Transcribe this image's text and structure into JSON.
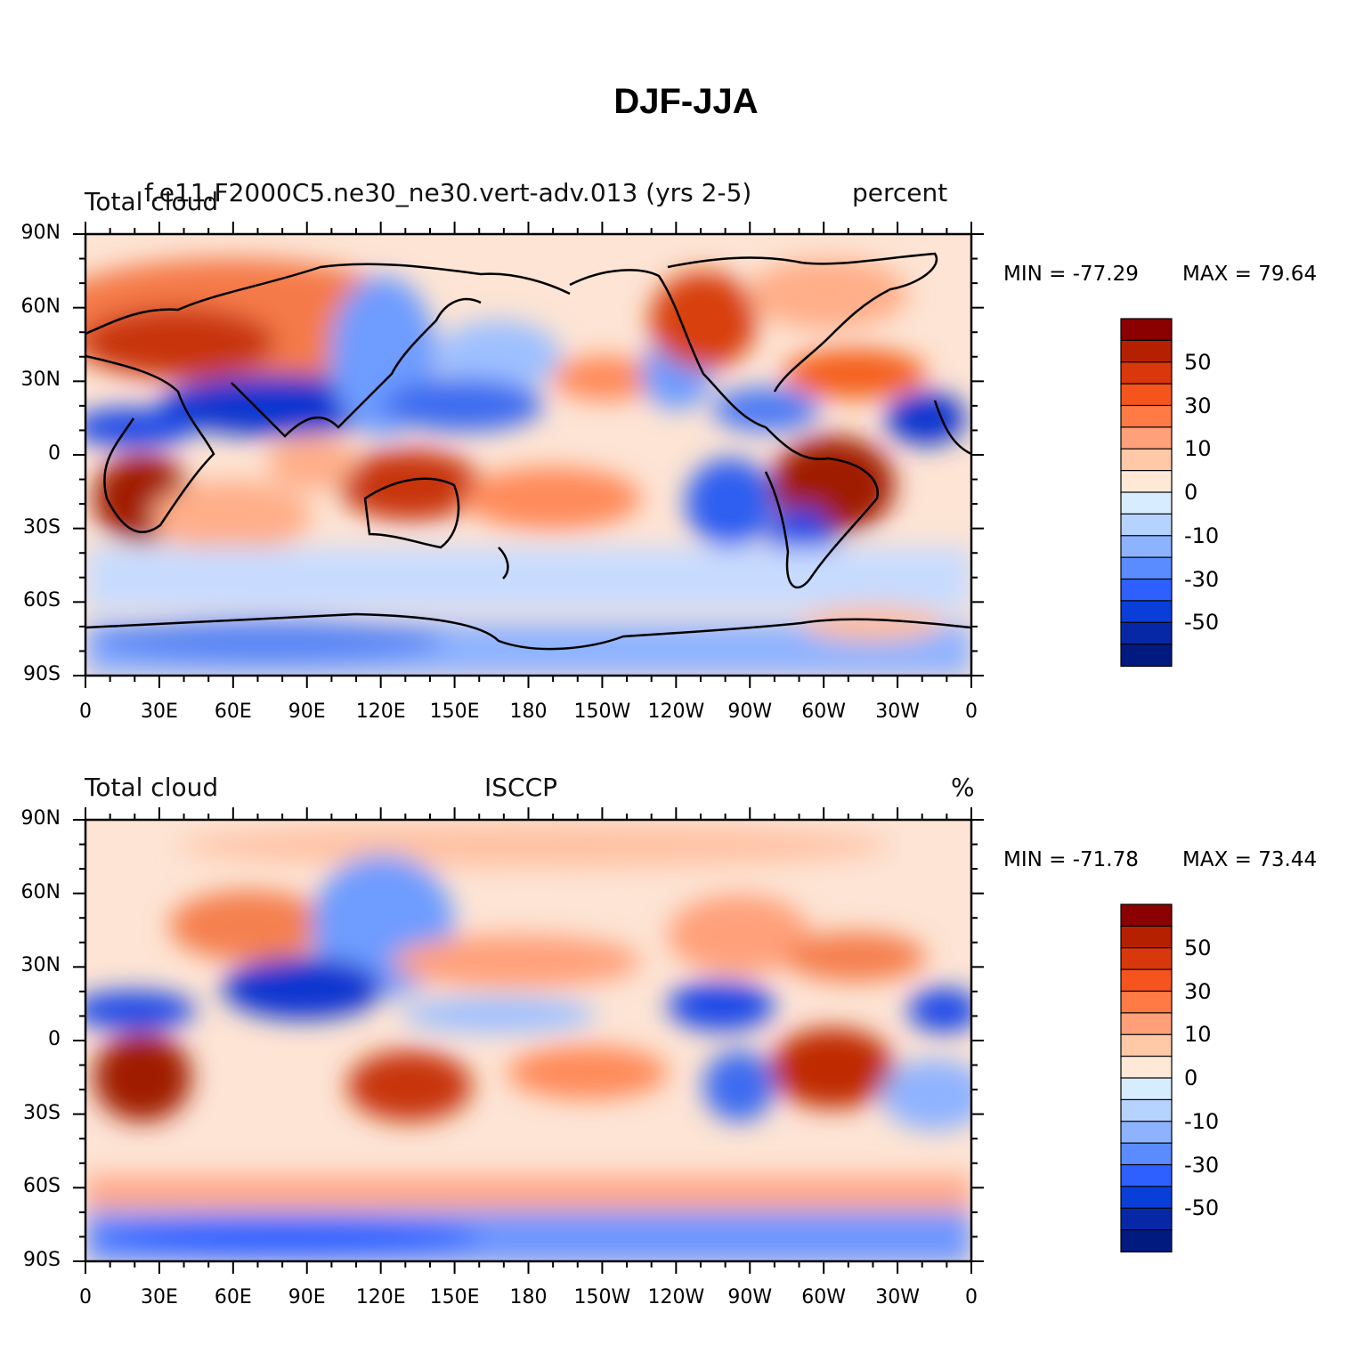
{
  "title": "DJF-JJA",
  "panels": [
    {
      "left_label": "Total cloud",
      "center_label": "f.e11.F2000C5.ne30_ne30.vert-adv.013 (yrs 2-5)",
      "right_label": "percent",
      "min_label": "MIN = -77.29",
      "max_label": "MAX =  79.64"
    },
    {
      "left_label": "Total cloud",
      "center_label": "ISCCP",
      "right_label": "%",
      "min_label": "MIN = -71.78",
      "max_label": "MAX =  73.44"
    }
  ],
  "lon_labels": [
    "0",
    "30E",
    "60E",
    "90E",
    "120E",
    "150E",
    "180",
    "150W",
    "120W",
    "90W",
    "60W",
    "30W",
    "0"
  ],
  "lat_labels": [
    "90N",
    "60N",
    "30N",
    "0",
    "30S",
    "60S",
    "90S"
  ],
  "colorbar": {
    "labels": [
      "50",
      "30",
      "10",
      "0",
      "-10",
      "-30",
      "-50"
    ],
    "colors": [
      "#8b0000",
      "#b52000",
      "#d8380c",
      "#f5541c",
      "#ff7a45",
      "#ffa07a",
      "#ffc9a8",
      "#ffe8d6",
      "#d8ecff",
      "#b6d3ff",
      "#8db3ff",
      "#5a8cff",
      "#2e60ff",
      "#0a3ed8",
      "#0628a6",
      "#001a80"
    ]
  },
  "colors": {
    "frame": "#000000",
    "coast": "#000000"
  }
}
